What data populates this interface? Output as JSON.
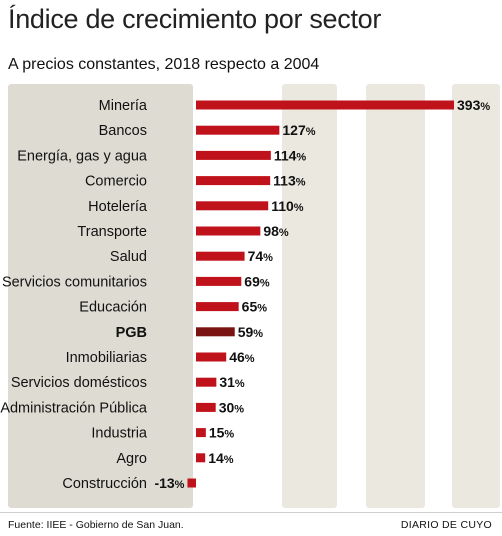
{
  "header": {
    "title": "Índice de crecimiento por sector",
    "subtitle": "A precios constantes, 2018 respecto a 2004"
  },
  "footer": {
    "source": "Fuente: IIEE - Gobierno de San Juan.",
    "credit": "DIARIO DE CUYO"
  },
  "colors": {
    "bar": "#c0121a",
    "highlight_bar": "#7a1412",
    "label_panel": "#dedcd2",
    "column_band": "#ebe9df"
  },
  "chart_data": {
    "type": "bar",
    "orientation": "horizontal",
    "title": "Índice de crecimiento por sector",
    "subtitle": "A precios constantes, 2018 respecto a 2004",
    "unit": "%",
    "xlim": [
      -25,
      400
    ],
    "grid": false,
    "highlight": "PGB",
    "categories": [
      "Minería",
      "Bancos",
      "Energía, gas y agua",
      "Comercio",
      "Hotelería",
      "Transporte",
      "Salud",
      "Servicios comunitarios",
      "Educación",
      "PGB",
      "Inmobiliarias",
      "Servicios domésticos",
      "Administración Pública",
      "Industria",
      "Agro",
      "Construcción"
    ],
    "values": [
      393,
      127,
      114,
      113,
      110,
      98,
      74,
      69,
      65,
      59,
      46,
      31,
      30,
      15,
      14,
      -13
    ]
  }
}
